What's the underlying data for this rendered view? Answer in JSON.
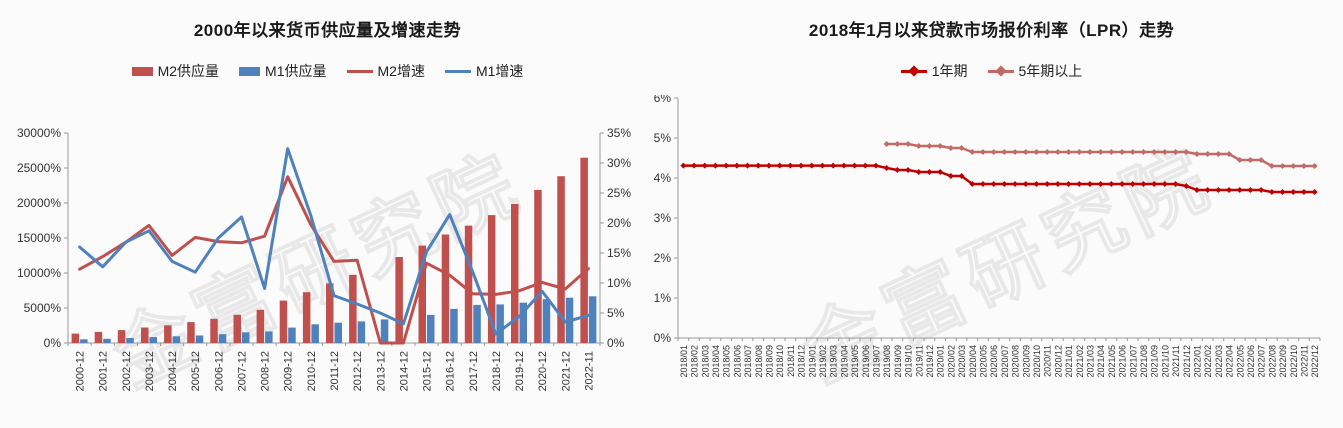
{
  "watermark": "金富研究院",
  "chart_data": [
    {
      "type": "bar+line",
      "title": "2000年以来货币供应量及增速走势",
      "legend_position": "top",
      "grid": false,
      "categories": [
        "2000-12",
        "2001-12",
        "2002-12",
        "2003-12",
        "2004-12",
        "2005-12",
        "2006-12",
        "2007-12",
        "2008-12",
        "2009-12",
        "2010-12",
        "2011-12",
        "2012-12",
        "2013-12",
        "2014-12",
        "2015-12",
        "2016-12",
        "2017-12",
        "2018-12",
        "2019-12",
        "2020-12",
        "2021-12",
        "2022-11"
      ],
      "left_axis_labels": [
        "0%",
        "5000%",
        "10000%",
        "15000%",
        "20000%",
        "25000%",
        "30000%"
      ],
      "right_axis_labels": [
        "0%",
        "5%",
        "10%",
        "15%",
        "20%",
        "25%",
        "30%",
        "35%"
      ],
      "left_axis_max": 30000,
      "right_axis_max": 35,
      "series": [
        {
          "name": "M2供应量",
          "type": "bar",
          "axis": "left",
          "color": "#C0504D",
          "values": [
            1350,
            1590,
            1850,
            2210,
            2530,
            2990,
            3460,
            4030,
            4750,
            6060,
            7260,
            8520,
            9740,
            0,
            12280,
            13920,
            15500,
            16770,
            18270,
            19860,
            21870,
            23830,
            26470
          ]
        },
        {
          "name": "M1供应量",
          "type": "bar",
          "axis": "left",
          "color": "#4F81BD",
          "values": [
            530,
            600,
            710,
            840,
            960,
            1070,
            1260,
            1530,
            1660,
            2200,
            2670,
            2900,
            3090,
            3370,
            0,
            4010,
            4870,
            5440,
            5520,
            5760,
            6260,
            6470,
            6670
          ]
        },
        {
          "name": "M2增速",
          "type": "line",
          "axis": "right",
          "color": "#C0504D",
          "values": [
            12.3,
            14.4,
            16.8,
            19.6,
            14.6,
            17.6,
            16.9,
            16.7,
            17.8,
            27.7,
            19.7,
            13.6,
            13.8,
            0,
            0,
            13.3,
            11.3,
            8.2,
            8.1,
            8.7,
            10.1,
            9.0,
            12.4
          ]
        },
        {
          "name": "M1增速",
          "type": "line",
          "axis": "right",
          "color": "#4F81BD",
          "values": [
            16.0,
            12.7,
            16.8,
            18.7,
            13.6,
            11.8,
            17.5,
            21.0,
            9.1,
            32.4,
            21.2,
            7.9,
            6.5,
            5.0,
            3.2,
            15.2,
            21.4,
            11.8,
            1.5,
            4.4,
            8.6,
            3.5,
            4.6
          ]
        }
      ]
    },
    {
      "type": "line",
      "title": "2018年1月以来贷款市场报价利率（LPR）走势",
      "legend_position": "top",
      "grid": false,
      "categories": [
        "2018/01",
        "2018/02",
        "2018/03",
        "2018/04",
        "2018/05",
        "2018/06",
        "2018/07",
        "2018/08",
        "2018/09",
        "2018/10",
        "2018/11",
        "2018/12",
        "2019/01",
        "2019/02",
        "2019/03",
        "2019/04",
        "2019/05",
        "2019/06",
        "2019/07",
        "2019/08",
        "2019/09",
        "2019/10",
        "2019/11",
        "2019/12",
        "2020/01",
        "2020/02",
        "2020/03",
        "2020/04",
        "2020/05",
        "2020/06",
        "2020/07",
        "2020/08",
        "2020/09",
        "2020/10",
        "2020/11",
        "2020/12",
        "2021/01",
        "2021/02",
        "2021/03",
        "2021/04",
        "2021/05",
        "2021/06",
        "2021/07",
        "2021/08",
        "2021/09",
        "2021/10",
        "2021/11",
        "2021/12",
        "2022/01",
        "2022/02",
        "2022/03",
        "2022/04",
        "2022/05",
        "2022/06",
        "2022/07",
        "2022/08",
        "2022/09",
        "2022/10",
        "2022/11",
        "2022/12"
      ],
      "y_axis_labels": [
        "0%",
        "1%",
        "2%",
        "3%",
        "4%",
        "5%",
        "6%"
      ],
      "y_axis_max": 6,
      "series": [
        {
          "name": "1年期",
          "color": "#C00000",
          "marker": "diamond",
          "values": [
            4.31,
            4.31,
            4.31,
            4.31,
            4.31,
            4.31,
            4.31,
            4.31,
            4.31,
            4.31,
            4.31,
            4.31,
            4.31,
            4.31,
            4.31,
            4.31,
            4.31,
            4.31,
            4.31,
            4.25,
            4.2,
            4.2,
            4.15,
            4.15,
            4.15,
            4.05,
            4.05,
            3.85,
            3.85,
            3.85,
            3.85,
            3.85,
            3.85,
            3.85,
            3.85,
            3.85,
            3.85,
            3.85,
            3.85,
            3.85,
            3.85,
            3.85,
            3.85,
            3.85,
            3.85,
            3.85,
            3.85,
            3.8,
            3.7,
            3.7,
            3.7,
            3.7,
            3.7,
            3.7,
            3.7,
            3.65,
            3.65,
            3.65,
            3.65,
            3.65
          ]
        },
        {
          "name": "5年期以上",
          "color": "#C26B66",
          "marker": "diamond",
          "values": [
            null,
            null,
            null,
            null,
            null,
            null,
            null,
            null,
            null,
            null,
            null,
            null,
            null,
            null,
            null,
            null,
            null,
            null,
            null,
            4.85,
            4.85,
            4.85,
            4.8,
            4.8,
            4.8,
            4.75,
            4.75,
            4.65,
            4.65,
            4.65,
            4.65,
            4.65,
            4.65,
            4.65,
            4.65,
            4.65,
            4.65,
            4.65,
            4.65,
            4.65,
            4.65,
            4.65,
            4.65,
            4.65,
            4.65,
            4.65,
            4.65,
            4.65,
            4.6,
            4.6,
            4.6,
            4.6,
            4.45,
            4.45,
            4.45,
            4.3,
            4.3,
            4.3,
            4.3,
            4.3
          ]
        }
      ]
    }
  ]
}
